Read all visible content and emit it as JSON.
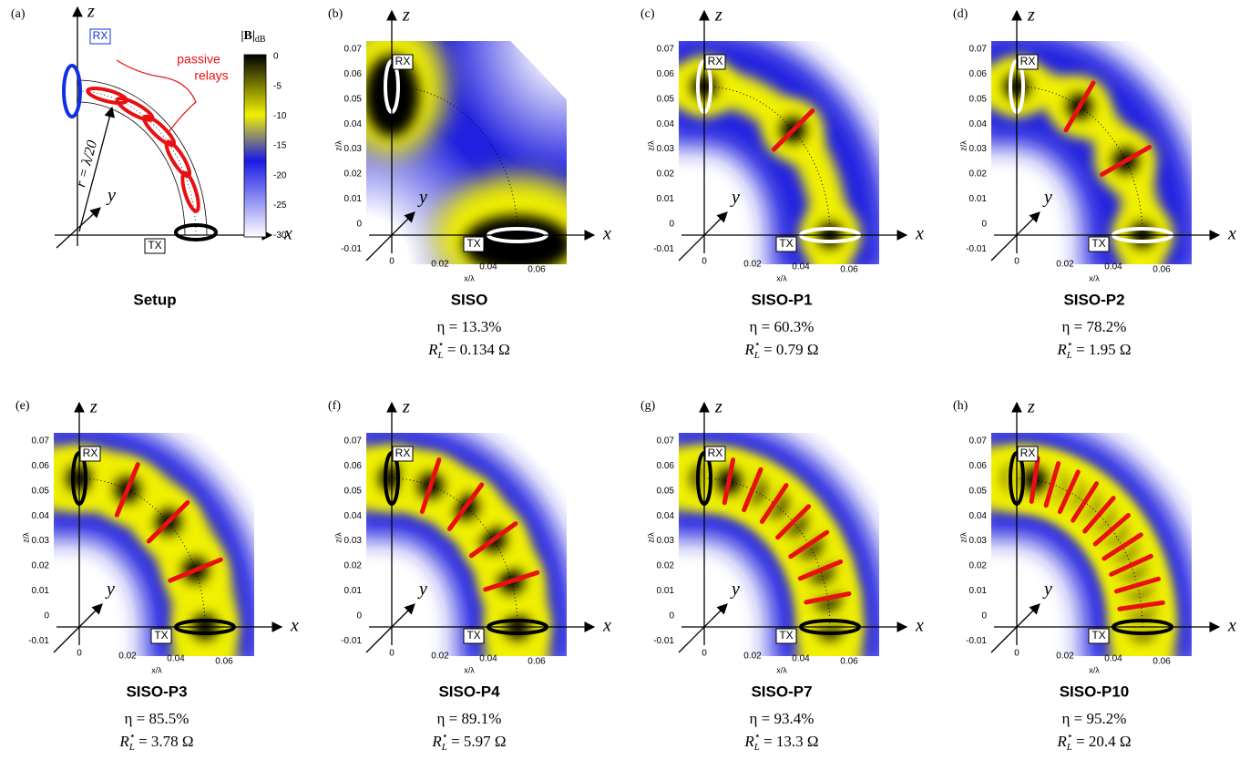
{
  "axes": {
    "x": "x",
    "y": "y",
    "z": "z",
    "rx": "RX",
    "tx": "TX",
    "z_ticks": [
      "0.07",
      "0.06",
      "0.05",
      "0.04",
      "0.03",
      "0.02",
      "0.01",
      "0",
      "-0.01"
    ],
    "x_ticks": [
      "0",
      "0.02",
      "0.04",
      "0.06"
    ],
    "z_label": "z/λ",
    "x_label": "x/λ"
  },
  "setup": {
    "label": "(a)",
    "title": "Setup",
    "relays_note": [
      "passive",
      "relays"
    ],
    "radius": "r = λ/20",
    "colorbar": {
      "title": "|B|",
      "unit": "dB",
      "ticks": [
        "0",
        "-5",
        "-10",
        "-15",
        "-20",
        "-25",
        "-30"
      ]
    }
  },
  "panels": [
    {
      "label": "(b)",
      "title": "SISO",
      "efficiency": "η = 13.3%",
      "load": {
        "symbol": "R",
        "sup": "⋆",
        "sub": "L",
        "value": " = 0.134 Ω"
      }
    },
    {
      "label": "(c)",
      "title": "SISO-P1",
      "efficiency": "η = 60.3%",
      "load": {
        "symbol": "R",
        "sup": "⋆",
        "sub": "L",
        "value": " = 0.79 Ω"
      }
    },
    {
      "label": "(d)",
      "title": "SISO-P2",
      "efficiency": "η = 78.2%",
      "load": {
        "symbol": "R",
        "sup": "⋆",
        "sub": "L",
        "value": " = 1.95 Ω"
      }
    },
    {
      "label": "(e)",
      "title": "SISO-P3",
      "efficiency": "η = 85.5%",
      "load": {
        "symbol": "R",
        "sup": "⋆",
        "sub": "L",
        "value": " = 3.78 Ω"
      }
    },
    {
      "label": "(f)",
      "title": "SISO-P4",
      "efficiency": "η = 89.1%",
      "load": {
        "symbol": "R",
        "sup": "⋆",
        "sub": "L",
        "value": " = 5.97 Ω"
      }
    },
    {
      "label": "(g)",
      "title": "SISO-P7",
      "efficiency": "η = 93.4%",
      "load": {
        "symbol": "R",
        "sup": "⋆",
        "sub": "L",
        "value": " = 13.3 Ω"
      }
    },
    {
      "label": "(h)",
      "title": "SISO-P10",
      "efficiency": "η = 95.2%",
      "load": {
        "symbol": "R",
        "sup": "⋆",
        "sub": "L",
        "value": " = 20.4 Ω"
      }
    }
  ]
}
